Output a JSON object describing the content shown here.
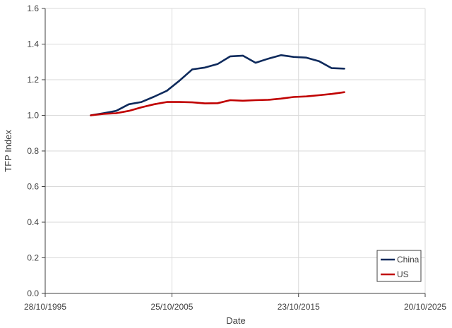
{
  "chart_data": {
    "type": "line",
    "title": "",
    "xlabel": "Date",
    "ylabel": "TFP Index",
    "ylim": [
      0,
      1.6
    ],
    "yticks": [
      "0.0",
      "0.2",
      "0.4",
      "0.6",
      "0.8",
      "1.0",
      "1.2",
      "1.4",
      "1.6"
    ],
    "xticks": [
      "28/10/1995",
      "25/10/2005",
      "23/10/2015",
      "20/10/2025"
    ],
    "grid": true,
    "legend_position": "bottom-right",
    "x": [
      1999,
      2000,
      2001,
      2002,
      2003,
      2004,
      2005,
      2006,
      2007,
      2008,
      2009,
      2010,
      2011,
      2012,
      2013,
      2014,
      2015,
      2016,
      2017,
      2018,
      2019
    ],
    "series": [
      {
        "name": "China",
        "color": "#0e2a5c",
        "values": [
          1.0,
          1.012,
          1.025,
          1.062,
          1.075,
          1.105,
          1.138,
          1.195,
          1.258,
          1.268,
          1.288,
          1.331,
          1.335,
          1.295,
          1.318,
          1.338,
          1.328,
          1.324,
          1.304,
          1.265,
          1.262
        ]
      },
      {
        "name": "US",
        "color": "#c00000",
        "values": [
          1.0,
          1.008,
          1.012,
          1.025,
          1.045,
          1.062,
          1.075,
          1.075,
          1.073,
          1.067,
          1.068,
          1.085,
          1.082,
          1.085,
          1.087,
          1.094,
          1.103,
          1.106,
          1.113,
          1.12,
          1.13
        ]
      }
    ]
  }
}
